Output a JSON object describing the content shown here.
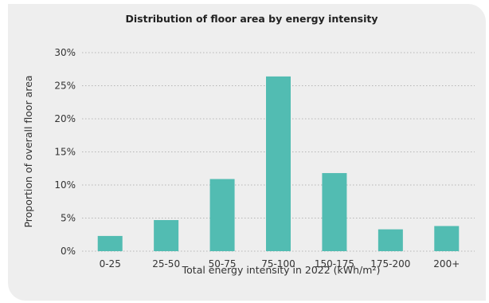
{
  "chart_data": {
    "type": "bar",
    "title": "Distribution of floor area by energy intensity",
    "xlabel": "Total energy intensity in 2022 (kWh/m²)",
    "ylabel": "Proportion of overall floor area",
    "categories": [
      "0-25",
      "25-50",
      "50-75",
      "75-100",
      "150-175",
      "175-200",
      "200+"
    ],
    "values": [
      2.3,
      4.7,
      10.9,
      26.4,
      11.8,
      3.3,
      3.8
    ],
    "ylim": [
      0,
      30
    ],
    "yticks": [
      0,
      5,
      10,
      15,
      20,
      25,
      30
    ],
    "ytick_labels": [
      "0%",
      "5%",
      "10%",
      "15%",
      "20%",
      "25%",
      "30%"
    ],
    "grid": "horizontal dotted",
    "legend": "none",
    "colors": {
      "bar": "#52bcb2",
      "background": "#eeeeee",
      "grid": "#b5b5b5"
    }
  }
}
